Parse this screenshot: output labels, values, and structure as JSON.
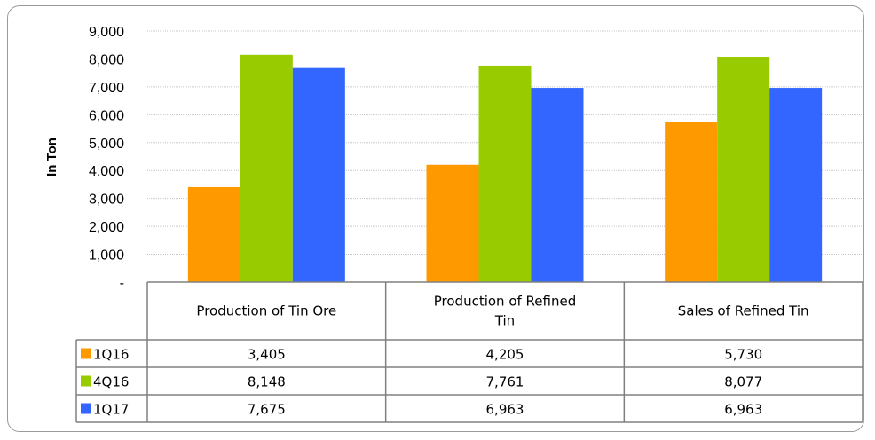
{
  "chart_data": {
    "type": "bar",
    "ylabel": "In Ton",
    "ylim": [
      0,
      9000
    ],
    "ytick_labels": [
      "-",
      "1,000",
      "2,000",
      "3,000",
      "4,000",
      "5,000",
      "6,000",
      "7,000",
      "8,000",
      "9,000"
    ],
    "categories": [
      [
        "Production of Tin Ore"
      ],
      [
        "Production of Refined",
        "Tin"
      ],
      [
        "Sales of Refined Tin"
      ]
    ],
    "series": [
      {
        "name": "1Q16",
        "color": "#ff9900",
        "values": [
          3405,
          4205,
          5730
        ],
        "labels": [
          "3,405",
          "4,205",
          "5,730"
        ]
      },
      {
        "name": "4Q16",
        "color": "#99cc00",
        "values": [
          8148,
          7761,
          8077
        ],
        "labels": [
          "8,148",
          "7,761",
          "8,077"
        ]
      },
      {
        "name": "1Q17",
        "color": "#3366ff",
        "values": [
          7675,
          6963,
          6963
        ],
        "labels": [
          "7,675",
          "6,963",
          "6,963"
        ]
      }
    ],
    "grid": true,
    "legend": "data-table"
  }
}
